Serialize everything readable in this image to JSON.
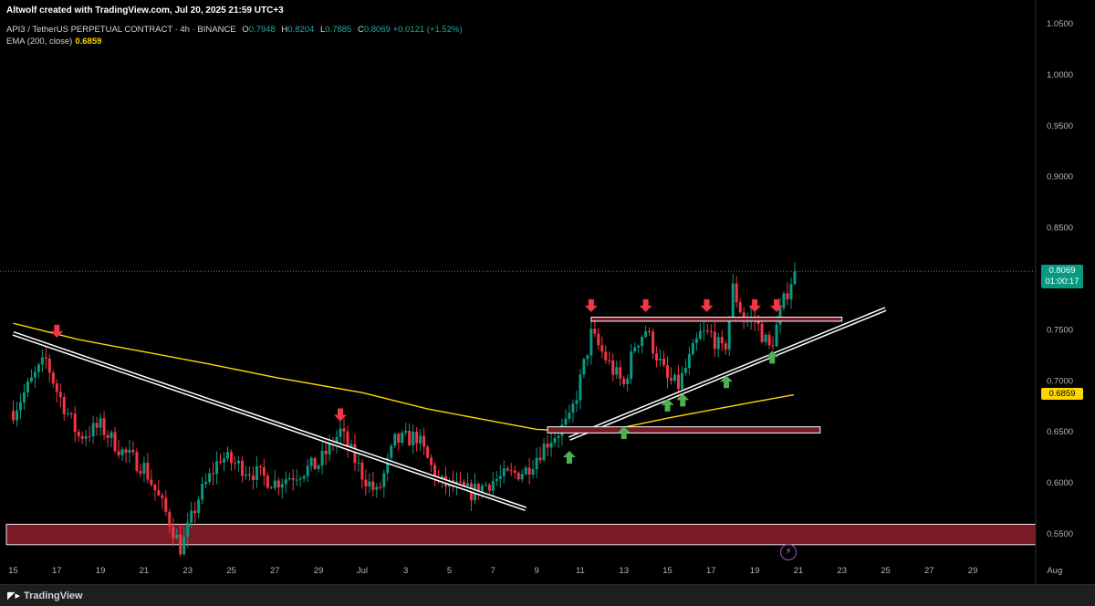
{
  "header": {
    "credit": "Altwolf created with TradingView.com, Jul 20, 2025 21:59 UTC+3",
    "symbol": "API3 / TetherUS PERPETUAL CONTRACT · 4h · BINANCE",
    "ohlc": {
      "o_label": "O",
      "o": "0.7948",
      "h_label": "H",
      "h": "0.8204",
      "l_label": "L",
      "l": "0.7885",
      "c_label": "C",
      "c": "0.8069",
      "change": "+0.0121 (+1.52%)"
    },
    "ema_label": "EMA (200, close)",
    "ema_value": "0.6859"
  },
  "price_tags": {
    "last_price": "0.8069",
    "countdown": "01:00:17",
    "ema_price": "0.6859"
  },
  "footer": {
    "brand": "TradingView"
  },
  "colors": {
    "up": "#089981",
    "down": "#f23645",
    "ema": "#ffd700",
    "zone": "#7a1a24",
    "arrow_down": "#f23645",
    "arrow_up": "#4caf50"
  },
  "chart_data": {
    "type": "candlestick",
    "timeframe": "4h",
    "ylim": [
      0.54,
      1.06
    ],
    "y_ticks": [
      "1.0500",
      "1.0000",
      "0.9500",
      "0.9000",
      "0.8500",
      "0.8069",
      "0.7500",
      "0.7000",
      "0.6859",
      "0.6500",
      "0.6000",
      "0.5500"
    ],
    "x_ticks": [
      "15",
      "17",
      "19",
      "21",
      "23",
      "25",
      "27",
      "29",
      "Jul",
      "3",
      "5",
      "7",
      "9",
      "11",
      "13",
      "15",
      "17",
      "19",
      "21",
      "23",
      "25",
      "27",
      "29",
      "Aug"
    ],
    "x_range_days": [
      "2025-06-15",
      "2025-08-01"
    ],
    "last_date": "2025-07-20",
    "price_anchors": [
      [
        "2025-06-15",
        0.67
      ],
      [
        "2025-06-16",
        0.705
      ],
      [
        "2025-06-16.5",
        0.72
      ],
      [
        "2025-06-17",
        0.69
      ],
      [
        "2025-06-18",
        0.645
      ],
      [
        "2025-06-19",
        0.655
      ],
      [
        "2025-06-20",
        0.63
      ],
      [
        "2025-06-21",
        0.615
      ],
      [
        "2025-06-22",
        0.57
      ],
      [
        "2025-06-22.7",
        0.535
      ],
      [
        "2025-06-23.5",
        0.585
      ],
      [
        "2025-06-24.5",
        0.625
      ],
      [
        "2025-06-25.5",
        0.615
      ],
      [
        "2025-06-27",
        0.6
      ],
      [
        "2025-06-29",
        0.618
      ],
      [
        "2025-06-30",
        0.65
      ],
      [
        "2025-07-01",
        0.608
      ],
      [
        "2025-07-01.7",
        0.588
      ],
      [
        "2025-07-02.5",
        0.64
      ],
      [
        "2025-07-03.5",
        0.645
      ],
      [
        "2025-07-04.5",
        0.6
      ],
      [
        "2025-07-06",
        0.59
      ],
      [
        "2025-07-07",
        0.602
      ],
      [
        "2025-07-08.5",
        0.612
      ],
      [
        "2025-07-09.5",
        0.64
      ],
      [
        "2025-07-10.5",
        0.66
      ],
      [
        "2025-07-11",
        0.7
      ],
      [
        "2025-07-11.5",
        0.745
      ],
      [
        "2025-07-12.5",
        0.71
      ],
      [
        "2025-07-13",
        0.695
      ],
      [
        "2025-07-13.5",
        0.735
      ],
      [
        "2025-07-14",
        0.75
      ],
      [
        "2025-07-15",
        0.7
      ],
      [
        "2025-07-15.5",
        0.695
      ],
      [
        "2025-07-16.5",
        0.745
      ],
      [
        "2025-07-17",
        0.745
      ],
      [
        "2025-07-17.6",
        0.725
      ],
      [
        "2025-07-18",
        0.79
      ],
      [
        "2025-07-18.5",
        0.76
      ],
      [
        "2025-07-19",
        0.76
      ],
      [
        "2025-07-19.7",
        0.73
      ],
      [
        "2025-07-20.3",
        0.775
      ],
      [
        "2025-07-20.8",
        0.8069
      ]
    ],
    "ema200": [
      [
        "2025-06-15",
        0.756
      ],
      [
        "2025-06-18",
        0.74
      ],
      [
        "2025-06-21",
        0.728
      ],
      [
        "2025-06-24",
        0.716
      ],
      [
        "2025-06-27",
        0.703
      ],
      [
        "2025-07-01",
        0.688
      ],
      [
        "2025-07-04",
        0.672
      ],
      [
        "2025-07-07",
        0.66
      ],
      [
        "2025-07-09",
        0.652
      ],
      [
        "2025-07-11",
        0.65
      ],
      [
        "2025-07-13",
        0.654
      ],
      [
        "2025-07-15",
        0.663
      ],
      [
        "2025-07-17",
        0.671
      ],
      [
        "2025-07-19",
        0.679
      ],
      [
        "2025-07-20.8",
        0.6859
      ]
    ],
    "annotations": {
      "descending_trendline": [
        [
          "2025-06-15",
          0.746
        ],
        [
          "2025-07-08.5",
          0.574
        ]
      ],
      "ascending_trendline": [
        [
          "2025-07-10.5",
          0.643
        ],
        [
          "2025-07-25",
          0.77
        ]
      ],
      "resistance_box": {
        "from": "2025-07-11.5",
        "to": "2025-07-23",
        "y_top": 0.762,
        "y_bottom": 0.758
      },
      "support_box": {
        "from": "2025-07-09.5",
        "to": "2025-07-22",
        "y_top": 0.6545,
        "y_bottom": 0.6485
      },
      "demand_zone": {
        "y_top": 0.559,
        "y_bottom": 0.539
      },
      "down_arrows": [
        [
          "2025-06-17",
          0.742
        ],
        [
          "2025-06-30",
          0.66
        ],
        [
          "2025-07-11.5",
          0.767
        ],
        [
          "2025-07-14",
          0.767
        ],
        [
          "2025-07-16.8",
          0.767
        ],
        [
          "2025-07-19",
          0.767
        ],
        [
          "2025-07-20",
          0.767
        ]
      ],
      "up_arrows": [
        [
          "2025-07-10.5",
          0.631
        ],
        [
          "2025-07-13",
          0.655
        ],
        [
          "2025-07-15",
          0.682
        ],
        [
          "2025-07-15.7",
          0.687
        ],
        [
          "2025-07-17.7",
          0.705
        ],
        [
          "2025-07-19.8",
          0.729
        ]
      ]
    }
  }
}
